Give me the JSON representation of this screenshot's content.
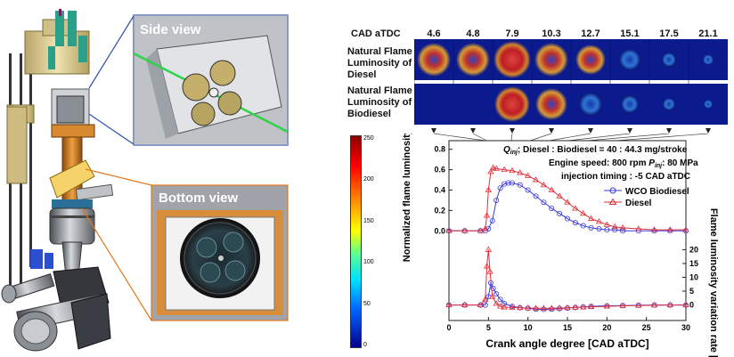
{
  "left_figure": {
    "side_view_label": "Side view",
    "bottom_view_label": "Bottom view"
  },
  "strip": {
    "header": "CAD aTDC",
    "cad_values": [
      "4.6",
      "4.8",
      "7.9",
      "10.3",
      "12.7",
      "15.1",
      "17.5",
      "21.1"
    ],
    "row1_label": [
      "Natural Flame",
      "Luminosity of",
      "Diesel"
    ],
    "row2_label": [
      "Natural Flame",
      "Luminosity of",
      "Biodiesel"
    ]
  },
  "colorbar": {
    "ticks": [
      "250",
      "200",
      "150",
      "100",
      "50",
      "0"
    ]
  },
  "annotations": {
    "line1": "; Diesel : Biodiesel = 40 : 44.3 mg/stroke",
    "q_symbol": "Q",
    "q_sub": "inj",
    "line2a": "Engine speed: 800 rpm ",
    "p_symbol": "P",
    "p_sub": "inj",
    "line2b": ": 80 MPa",
    "line3": "injection timing : -5 CAD aTDC"
  },
  "legend": {
    "wco": "WCO Biodiesel",
    "diesel": "Diesel"
  },
  "colors": {
    "wco": "#3a3adf",
    "diesel": "#e0303a"
  },
  "chart_data": [
    {
      "type": "line",
      "xlabel": "Crank angle degree [CAD aTDC]",
      "ylabel": "Normalized flame luminosity [a.u.]",
      "xlim": [
        0,
        30
      ],
      "ylim": [
        -0.05,
        0.85
      ],
      "x_ticks": [
        "0",
        "5",
        "10",
        "15",
        "20",
        "25",
        "30"
      ],
      "y_ticks": [
        "0.0",
        "0.2",
        "0.4",
        "0.6",
        "0.8"
      ],
      "series": [
        {
          "name": "WCO Biodiesel",
          "x": [
            0,
            2,
            4,
            4.6,
            5.0,
            5.5,
            6,
            6.5,
            7,
            7.5,
            8,
            9,
            10,
            11,
            12,
            13,
            14,
            15,
            16,
            17,
            18,
            19,
            20,
            21,
            22,
            24,
            26,
            28,
            30
          ],
          "y": [
            0,
            0,
            0,
            0,
            0.02,
            0.1,
            0.3,
            0.42,
            0.46,
            0.47,
            0.47,
            0.45,
            0.4,
            0.34,
            0.28,
            0.22,
            0.17,
            0.12,
            0.08,
            0.05,
            0.03,
            0.02,
            0.01,
            0.01,
            0.0,
            0.0,
            0.0,
            0.0,
            0.0
          ]
        },
        {
          "name": "Diesel",
          "x": [
            0,
            2,
            4,
            4.6,
            4.8,
            5.0,
            5.3,
            5.6,
            6,
            7,
            8,
            9,
            10,
            11,
            12,
            13,
            14,
            15,
            16,
            17,
            18,
            19,
            20,
            21,
            22,
            24,
            26,
            28,
            30
          ],
          "y": [
            0,
            0,
            0,
            0.02,
            0.15,
            0.4,
            0.58,
            0.62,
            0.61,
            0.6,
            0.59,
            0.57,
            0.54,
            0.5,
            0.45,
            0.4,
            0.34,
            0.28,
            0.22,
            0.17,
            0.12,
            0.09,
            0.06,
            0.04,
            0.03,
            0.02,
            0.01,
            0.01,
            0.01
          ]
        }
      ]
    },
    {
      "type": "line",
      "xlabel": "Crank angle degree [CAD aTDC]",
      "ylabel": "Flame luminosity variation rate [%]",
      "xlim": [
        0,
        30
      ],
      "ylim": [
        -4,
        24
      ],
      "x_ticks": [
        "0",
        "5",
        "10",
        "15",
        "20",
        "25",
        "30"
      ],
      "y_ticks": [
        "0",
        "5",
        "10",
        "15",
        "20"
      ],
      "series": [
        {
          "name": "WCO Biodiesel",
          "x": [
            0,
            2,
            4,
            4.6,
            5.0,
            5.3,
            5.6,
            6,
            6.5,
            7,
            8,
            9,
            10,
            11,
            12,
            13,
            14,
            15,
            16,
            17,
            18,
            20,
            22,
            24,
            26,
            28,
            30
          ],
          "y": [
            0,
            0,
            0,
            0,
            3,
            8,
            6,
            4,
            2,
            0.5,
            -0.5,
            -1,
            -1.2,
            -1.5,
            -1.6,
            -1.5,
            -1.3,
            -1.1,
            -0.9,
            -0.7,
            -0.5,
            -0.3,
            -0.2,
            -0.1,
            0,
            0,
            0
          ]
        },
        {
          "name": "Diesel",
          "x": [
            0,
            2,
            4,
            4.6,
            4.8,
            5.0,
            5.2,
            5.5,
            6,
            6.5,
            7,
            8,
            9,
            10,
            11,
            12,
            13,
            14,
            15,
            16,
            17,
            18,
            20,
            22,
            24,
            26,
            28,
            30
          ],
          "y": [
            0,
            0,
            0,
            2,
            14,
            20,
            12,
            3,
            0.5,
            -0.5,
            -0.8,
            -0.9,
            -1.0,
            -1.1,
            -1.2,
            -1.2,
            -1.2,
            -1.1,
            -1.0,
            -0.9,
            -0.8,
            -0.7,
            -0.5,
            -0.3,
            -0.2,
            -0.1,
            0,
            0
          ]
        }
      ]
    }
  ]
}
